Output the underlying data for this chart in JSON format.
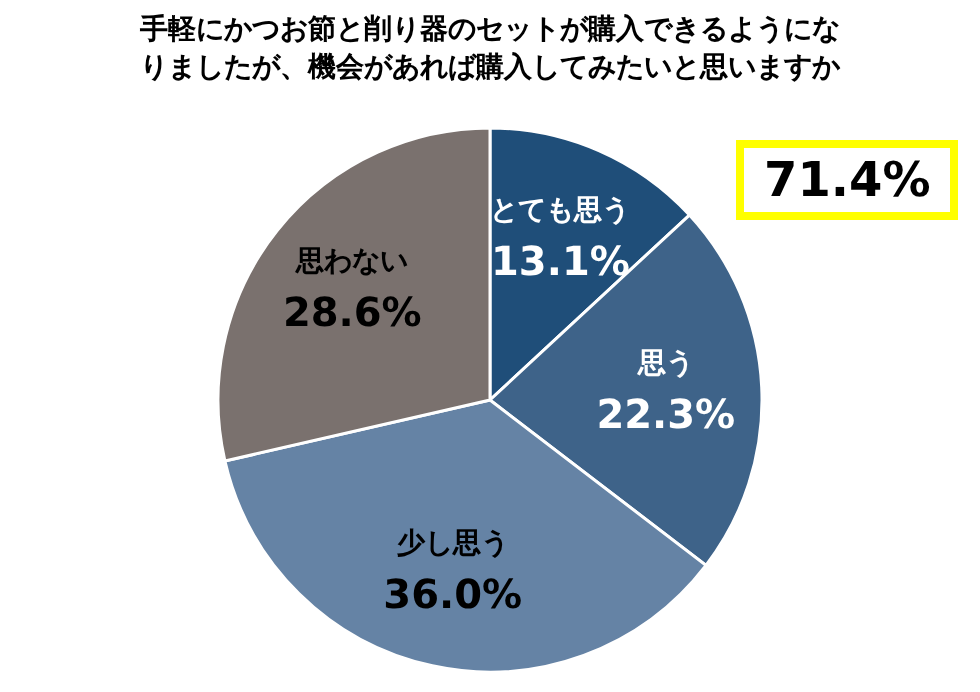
{
  "chart_data": {
    "type": "pie",
    "title": "手軽にかつお節と削り器のセットが購入できるようになりましたが、機会があれば購入してみたいと思いますか",
    "categories": [
      "とても思う",
      "思う",
      "少し思う",
      "思わない"
    ],
    "values": [
      13.1,
      22.3,
      36.0,
      28.6
    ],
    "value_labels": [
      "13.1%",
      "22.3%",
      "36.0%",
      "28.6%"
    ],
    "colors": [
      "#1f4e79",
      "#3e6389",
      "#6583a5",
      "#7a716e"
    ],
    "annotations": [
      "71.4%"
    ]
  }
}
